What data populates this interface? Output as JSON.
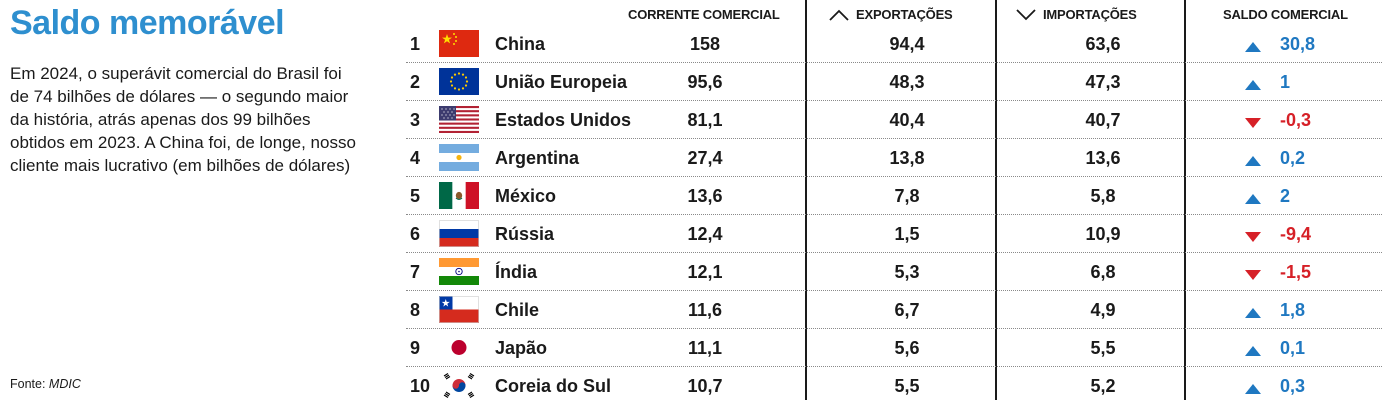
{
  "title": "Saldo memorável",
  "description": "Em 2024, o superávit comercial do Brasil foi de 74 bilhões de dólares — o segundo maior da história, atrás apenas dos 99 bilhões obtidos em 2023. A China foi, de longe, nosso cliente mais lucrativo (em bilhões de dólares)",
  "source": {
    "label": "Fonte: ",
    "name": "MDIC"
  },
  "colors": {
    "title": "#2e8fcf",
    "positive": "#1f78c1",
    "negative": "#d62027",
    "text": "#1a1a1a"
  },
  "chart_data": {
    "type": "table",
    "columns": [
      "CORRENTE COMERCIAL",
      "EXPORTAÇÕES",
      "IMPORTAÇÕES",
      "SALDO COMERCIAL"
    ],
    "column_icons": [
      "",
      "chevron-up-icon",
      "chevron-down-icon",
      ""
    ],
    "rows": [
      {
        "rank": "1",
        "country": "China",
        "flag": "flag-china-icon",
        "corrente": "158",
        "exportacoes": "94,4",
        "importacoes": "63,6",
        "saldo": "30,8",
        "direction": "up"
      },
      {
        "rank": "2",
        "country": "União Europeia",
        "flag": "flag-european-union-icon",
        "corrente": "95,6",
        "exportacoes": "48,3",
        "importacoes": "47,3",
        "saldo": "1",
        "direction": "up"
      },
      {
        "rank": "3",
        "country": "Estados Unidos",
        "flag": "flag-united-states-icon",
        "corrente": "81,1",
        "exportacoes": "40,4",
        "importacoes": "40,7",
        "saldo": "-0,3",
        "direction": "down"
      },
      {
        "rank": "4",
        "country": "Argentina",
        "flag": "flag-argentina-icon",
        "corrente": "27,4",
        "exportacoes": "13,8",
        "importacoes": "13,6",
        "saldo": "0,2",
        "direction": "up"
      },
      {
        "rank": "5",
        "country": "México",
        "flag": "flag-mexico-icon",
        "corrente": "13,6",
        "exportacoes": "7,8",
        "importacoes": "5,8",
        "saldo": "2",
        "direction": "up"
      },
      {
        "rank": "6",
        "country": "Rússia",
        "flag": "flag-russia-icon",
        "corrente": "12,4",
        "exportacoes": "1,5",
        "importacoes": "10,9",
        "saldo": "-9,4",
        "direction": "down"
      },
      {
        "rank": "7",
        "country": "Índia",
        "flag": "flag-india-icon",
        "corrente": "12,1",
        "exportacoes": "5,3",
        "importacoes": "6,8",
        "saldo": "-1,5",
        "direction": "down"
      },
      {
        "rank": "8",
        "country": "Chile",
        "flag": "flag-chile-icon",
        "corrente": "11,6",
        "exportacoes": "6,7",
        "importacoes": "4,9",
        "saldo": "1,8",
        "direction": "up"
      },
      {
        "rank": "9",
        "country": "Japão",
        "flag": "flag-japan-icon",
        "corrente": "11,1",
        "exportacoes": "5,6",
        "importacoes": "5,5",
        "saldo": "0,1",
        "direction": "up"
      },
      {
        "rank": "10",
        "country": "Coreia do Sul",
        "flag": "flag-south-korea-icon",
        "corrente": "10,7",
        "exportacoes": "5,5",
        "importacoes": "5,2",
        "saldo": "0,3",
        "direction": "up"
      }
    ]
  }
}
